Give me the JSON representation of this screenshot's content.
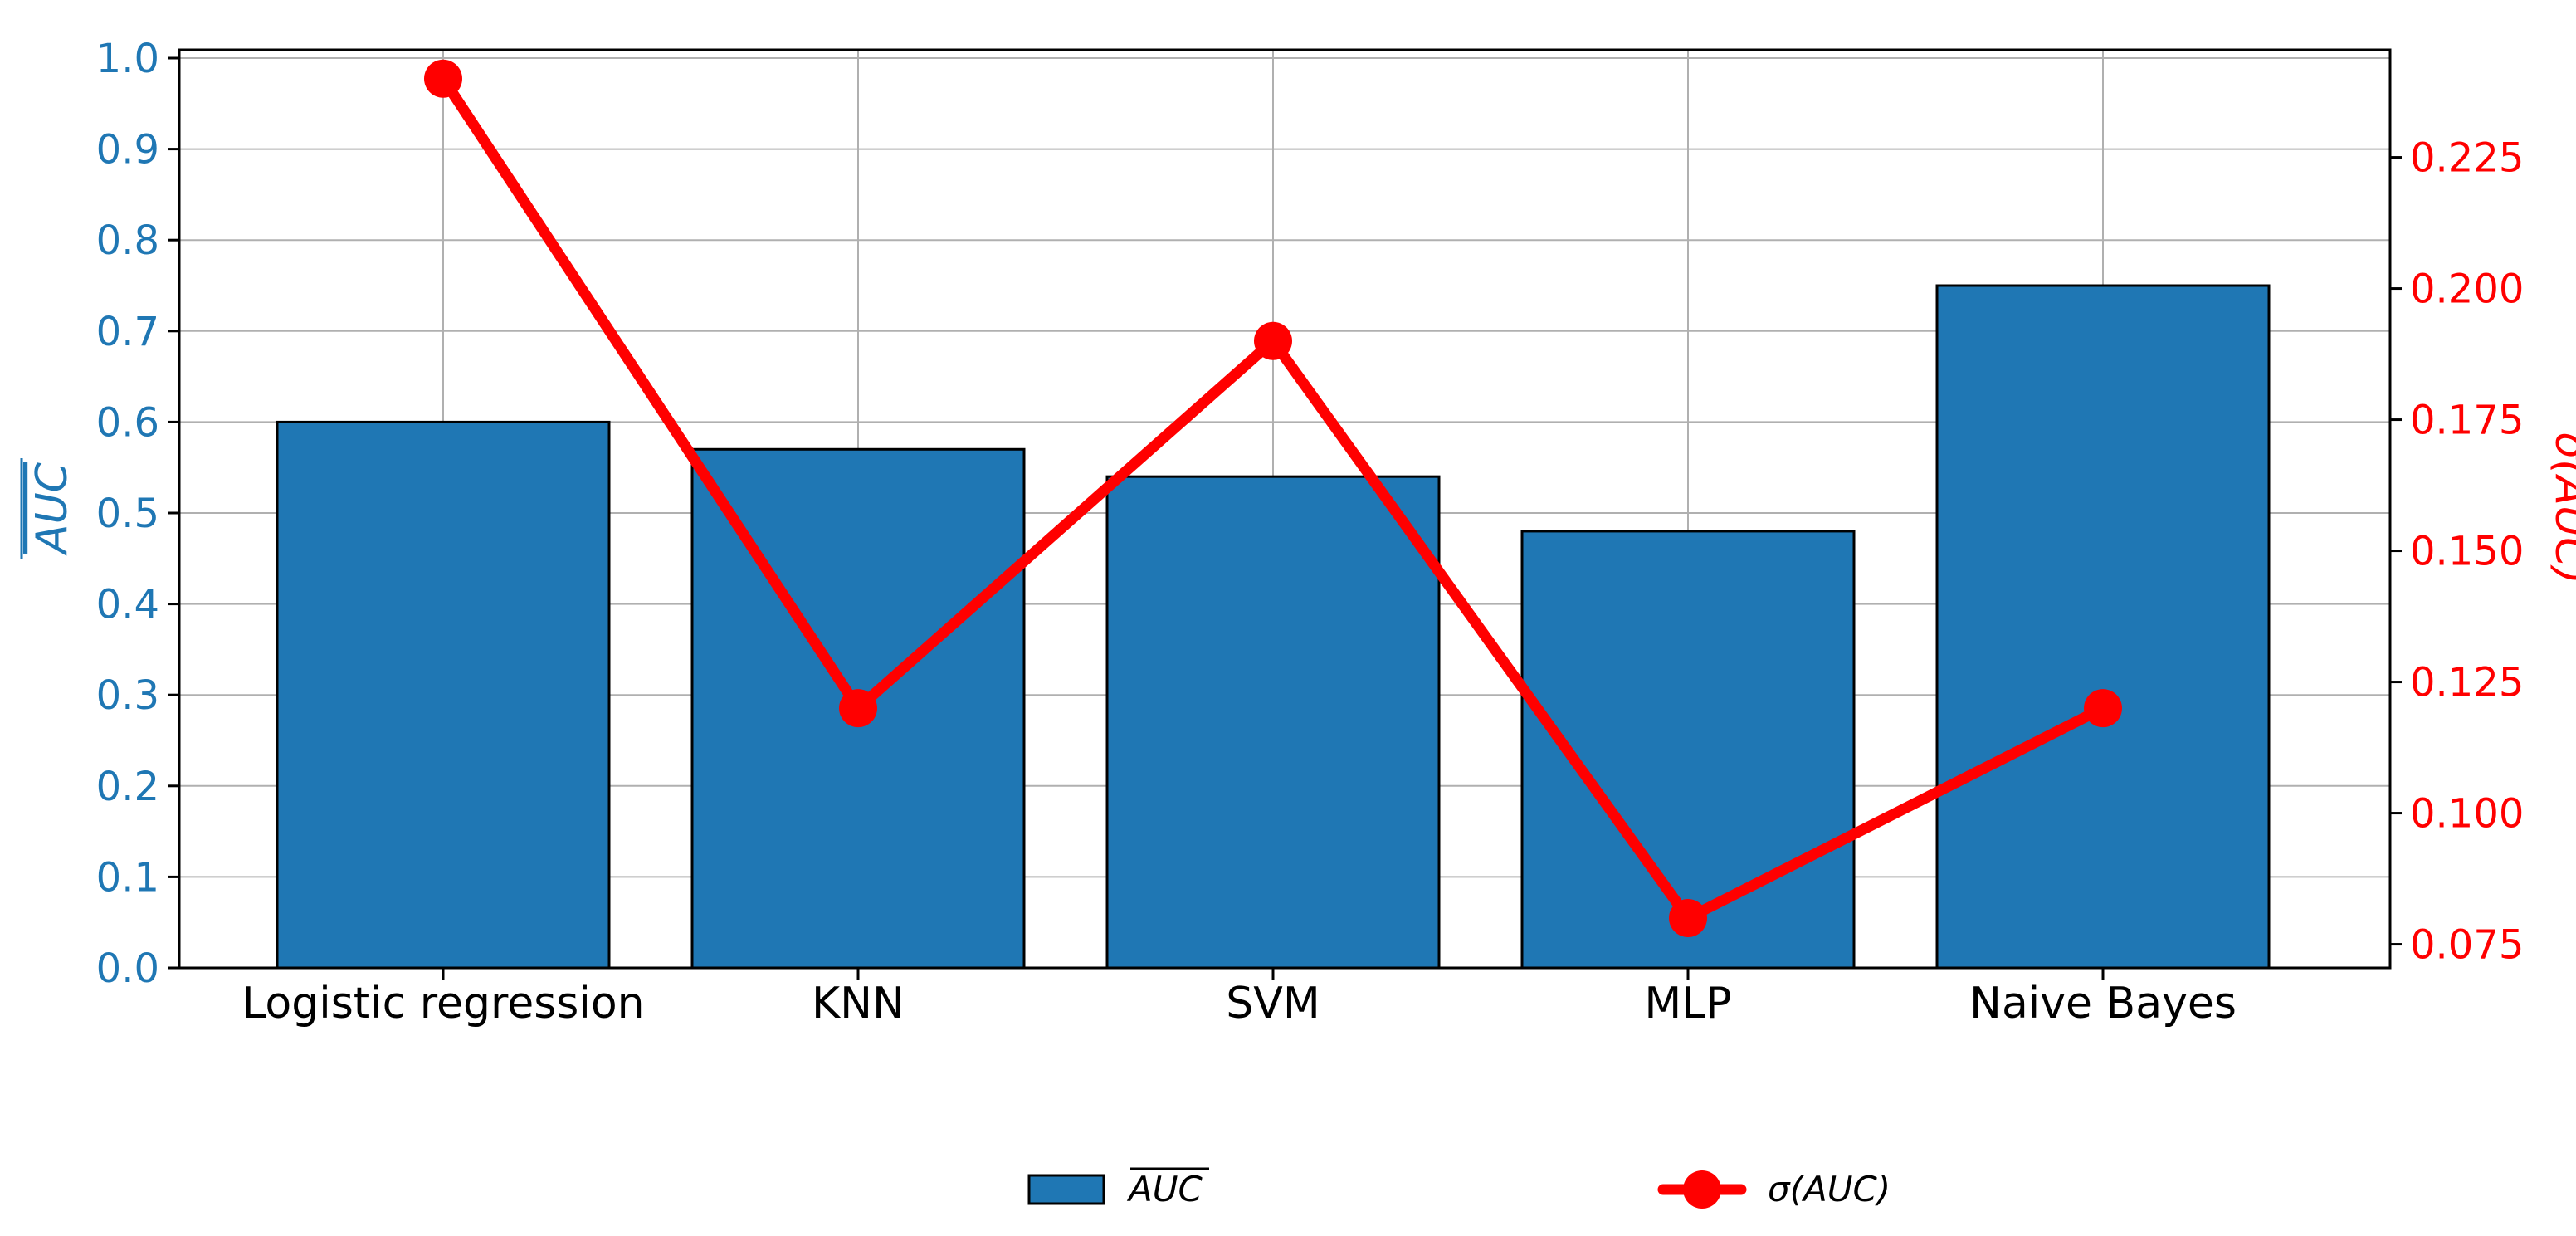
{
  "chart_data": {
    "type": "bar",
    "categories": [
      "Logistic regression",
      "KNN",
      "SVM",
      "MLP",
      "Naive Bayes"
    ],
    "series": [
      {
        "name": "AUC",
        "display": "mean",
        "type": "bar",
        "axis": "left",
        "color": "#1f77b4",
        "values": [
          0.6,
          0.57,
          0.54,
          0.48,
          0.75
        ]
      },
      {
        "name": "σ(AUC)",
        "type": "line",
        "axis": "right",
        "color": "#ff0000",
        "values": [
          0.24,
          0.12,
          0.19,
          0.08,
          0.12
        ]
      }
    ],
    "left_axis": {
      "label": "AUC",
      "label_overline": true,
      "color": "#1f77b4",
      "ylim": [
        0,
        1.0
      ],
      "ticks": [
        "0.0",
        "0.1",
        "0.2",
        "0.3",
        "0.4",
        "0.5",
        "0.6",
        "0.7",
        "0.8",
        "0.9",
        "1.0"
      ]
    },
    "right_axis": {
      "label": "σ(AUC)",
      "color": "#ff0000",
      "ylim": [
        0.0705,
        0.2455
      ],
      "ticks": [
        "0.075",
        "0.100",
        "0.125",
        "0.150",
        "0.175",
        "0.200",
        "0.225"
      ]
    },
    "grid": true,
    "legend": {
      "placement": "bottom-center",
      "entries": [
        {
          "label": "AUC",
          "overline": true,
          "marker": "bar",
          "color": "#1f77b4"
        },
        {
          "label": "σ(AUC)",
          "overline": false,
          "marker": "line-dot",
          "color": "#ff0000"
        }
      ]
    }
  }
}
